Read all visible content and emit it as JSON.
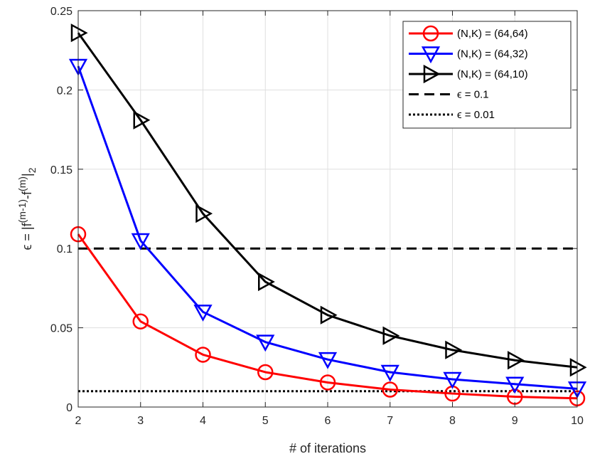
{
  "chart_data": {
    "type": "line",
    "xlabel": "# of iterations",
    "ylabel": "ϵ = |f(m-1)-f(m)|2",
    "ylabel_parts": {
      "lhs": "ϵ = |f",
      "sup1": "(m-1)",
      "mid": "-f",
      "sup2": "(m)",
      "rhs": "|",
      "sub": "2"
    },
    "xlim": [
      2,
      10
    ],
    "ylim": [
      0,
      0.25
    ],
    "x_ticks": [
      "2",
      "3",
      "4",
      "5",
      "6",
      "7",
      "8",
      "9",
      "10"
    ],
    "y_ticks": [
      "0",
      "0.05",
      "0.1",
      "0.15",
      "0.2",
      "0.25"
    ],
    "y_tick_values": [
      0,
      0.05,
      0.1,
      0.15,
      0.2,
      0.25
    ],
    "grid": true,
    "legend_position": "top-right",
    "x": [
      2,
      3,
      4,
      5,
      6,
      7,
      8,
      9,
      10
    ],
    "series": [
      {
        "name": "(N,K) = (64,64)",
        "color": "#ff0000",
        "marker": "circle",
        "values": [
          0.109,
          0.054,
          0.033,
          0.022,
          0.0155,
          0.011,
          0.0085,
          0.0065,
          0.0055
        ]
      },
      {
        "name": "(N,K) = (64,32)",
        "color": "#0000ff",
        "marker": "triangle-down",
        "values": [
          0.215,
          0.105,
          0.06,
          0.041,
          0.03,
          0.022,
          0.0175,
          0.0145,
          0.0115
        ]
      },
      {
        "name": "(N,K) = (64,10)",
        "color": "#000000",
        "marker": "triangle-right",
        "values": [
          0.236,
          0.181,
          0.122,
          0.079,
          0.058,
          0.045,
          0.036,
          0.0295,
          0.025
        ]
      }
    ],
    "reference_lines": [
      {
        "name": "ϵ = 0.1",
        "value": 0.1,
        "style": "dashed",
        "color": "#000000"
      },
      {
        "name": "ϵ = 0.01",
        "value": 0.01,
        "style": "dotted",
        "color": "#000000"
      }
    ]
  }
}
